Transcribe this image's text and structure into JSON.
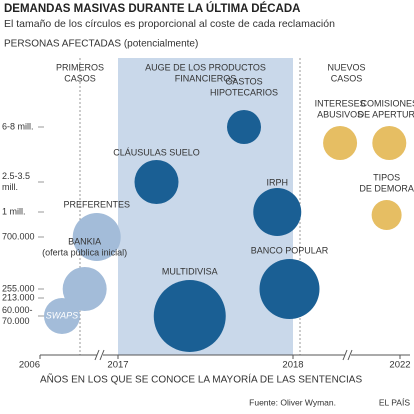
{
  "chart_data": {
    "type": "bubble",
    "title": "DEMANDAS MASIVAS DURANTE LA ÚLTIMA DÉCADA",
    "subtitle": "El tamaño de los círculos es proporcional al coste de cada reclamación",
    "y_label": "PERSONAS AFECTADAS (potencialmente)",
    "x_label": "AÑOS EN LOS QUE SE CONOCE LA MAYORÍA DE LAS SENTENCIAS",
    "source": "Fuente: Oliver Wyman.",
    "credit": "EL PAÍS",
    "y_categories": [
      [
        "6-8 mill."
      ],
      [
        "2.5-3.5",
        "mill."
      ],
      [
        "1 mill."
      ],
      [
        "700.000"
      ],
      [
        "255.000"
      ],
      [
        "213.000"
      ],
      [
        "60.000-",
        "70.000"
      ]
    ],
    "xticks": [
      2006,
      2017,
      2018,
      2022
    ],
    "sections": [
      {
        "label": [
          "PRIMEROS",
          "CASOS"
        ],
        "from": 2006,
        "to": 2017
      },
      {
        "label": [
          "AUGE DE LOS PRODUCTOS",
          "FINANCIEROS"
        ],
        "from": 2017,
        "to": 2018,
        "color": "#c9d8ea"
      },
      {
        "label": [
          "NUEVOS",
          "CASOS"
        ],
        "from": 2018,
        "to": 2022
      }
    ],
    "series": [
      {
        "name": "primeros",
        "color": "#a3bcd9",
        "points": [
          {
            "label": [
              "SWAPS"
            ],
            "x": 2009.1,
            "y": "60.000- 70.000",
            "size": 18
          },
          {
            "label": [
              "BANKIA",
              "(oferta pública inicial)"
            ],
            "x": 2012.3,
            "y": "255.000",
            "size": 22
          },
          {
            "label": [
              "PREFERENTES"
            ],
            "x": 2014.0,
            "y": "700.000",
            "size": 24
          }
        ]
      },
      {
        "name": "auge",
        "color": "#1a5f94",
        "points": [
          {
            "label": [
              "CLÁUSULAS SUELO"
            ],
            "x": 2017.22,
            "y": "2.5-3.5 mill.",
            "size": 22
          },
          {
            "label": [
              "MULTIDIVISA"
            ],
            "x": 2017.41,
            "y": "60.000- 70.000",
            "size": 36
          },
          {
            "label": [
              "GASTOS",
              "HIPOTECARIOS"
            ],
            "x": 2017.72,
            "y": "6-8 mill.",
            "size": 17
          },
          {
            "label": [
              "IRPH"
            ],
            "x": 2017.91,
            "y": "1 mill.",
            "size": 24
          },
          {
            "label": [
              "BANCO POPULAR"
            ],
            "x": 2017.98,
            "y": "255.000",
            "size": 30
          }
        ]
      },
      {
        "name": "nuevos",
        "color": "#e6be63",
        "points": [
          {
            "label": [
              "INTERESES",
              "ABUSIVOS"
            ],
            "x": 2019.76,
            "y": null,
            "size": 17
          },
          {
            "label": [
              "COMISIONES",
              "DE APERTURA"
            ],
            "x": 2021.6,
            "y": null,
            "size": 17
          },
          {
            "label": [
              "TIPOS",
              "DE DEMORA"
            ],
            "x": 2021.5,
            "y": null,
            "size": 15
          }
        ]
      }
    ]
  }
}
